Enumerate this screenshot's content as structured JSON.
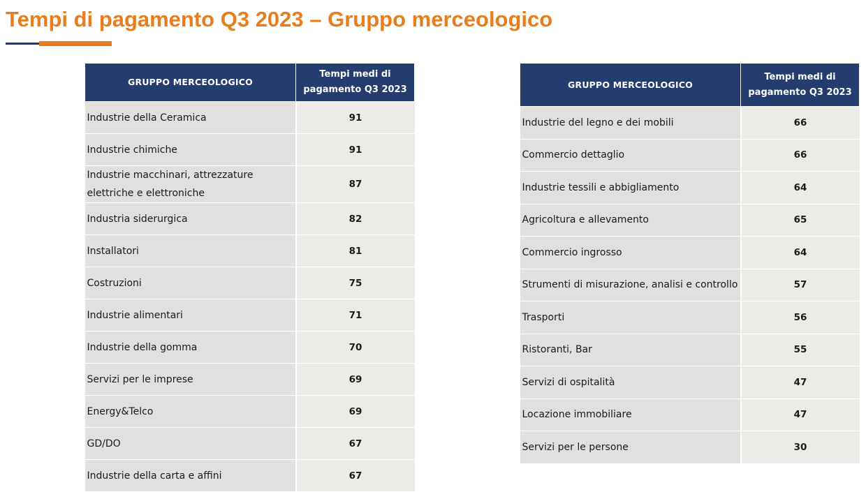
{
  "title": "Tempi di pagamento Q3 2023 – Gruppo merceologico",
  "colors": {
    "accent": "#ea7d1b",
    "header": "#243d6e",
    "cell": "#e2e0de"
  },
  "left_table": {
    "header_group": "GRUPPO MERCEOLOGICO",
    "header_value": "Tempi medi di pagamento Q3 2023",
    "rows": [
      {
        "name": "Industrie della Ceramica",
        "value": "91"
      },
      {
        "name": "Industrie chimiche",
        "value": "91"
      },
      {
        "name": "Industrie macchinari, attrezzature elettriche e elettroniche",
        "value": "87"
      },
      {
        "name": "Industria siderurgica",
        "value": "82"
      },
      {
        "name": "Installatori",
        "value": "81"
      },
      {
        "name": "Costruzioni",
        "value": "75"
      },
      {
        "name": "Industrie alimentari",
        "value": "71"
      },
      {
        "name": "Industrie della gomma",
        "value": "70"
      },
      {
        "name": "Servizi per le imprese",
        "value": "69"
      },
      {
        "name": "Energy&Telco",
        "value": "69"
      },
      {
        "name": "GD/DO",
        "value": "67"
      },
      {
        "name": "Industrie della carta e affini",
        "value": "67"
      }
    ]
  },
  "right_table": {
    "header_group": "GRUPPO MERCEOLOGICO",
    "header_value": "Tempi medi di pagamento Q3 2023",
    "rows": [
      {
        "name": "Industrie del legno e dei mobili",
        "value": "66"
      },
      {
        "name": "Commercio dettaglio",
        "value": "66"
      },
      {
        "name": "Industrie tessili e abbigliamento",
        "value": "64"
      },
      {
        "name": "Agricoltura e allevamento",
        "value": "65"
      },
      {
        "name": "Commercio ingrosso",
        "value": "64"
      },
      {
        "name": "Strumenti di misurazione, analisi e controllo",
        "value": "57"
      },
      {
        "name": "Trasporti",
        "value": "56"
      },
      {
        "name": "Ristoranti, Bar",
        "value": "55"
      },
      {
        "name": "Servizi di ospitalità",
        "value": "47"
      },
      {
        "name": "Locazione immobiliare",
        "value": "47"
      },
      {
        "name": "Servizi per le persone",
        "value": "30"
      }
    ]
  }
}
